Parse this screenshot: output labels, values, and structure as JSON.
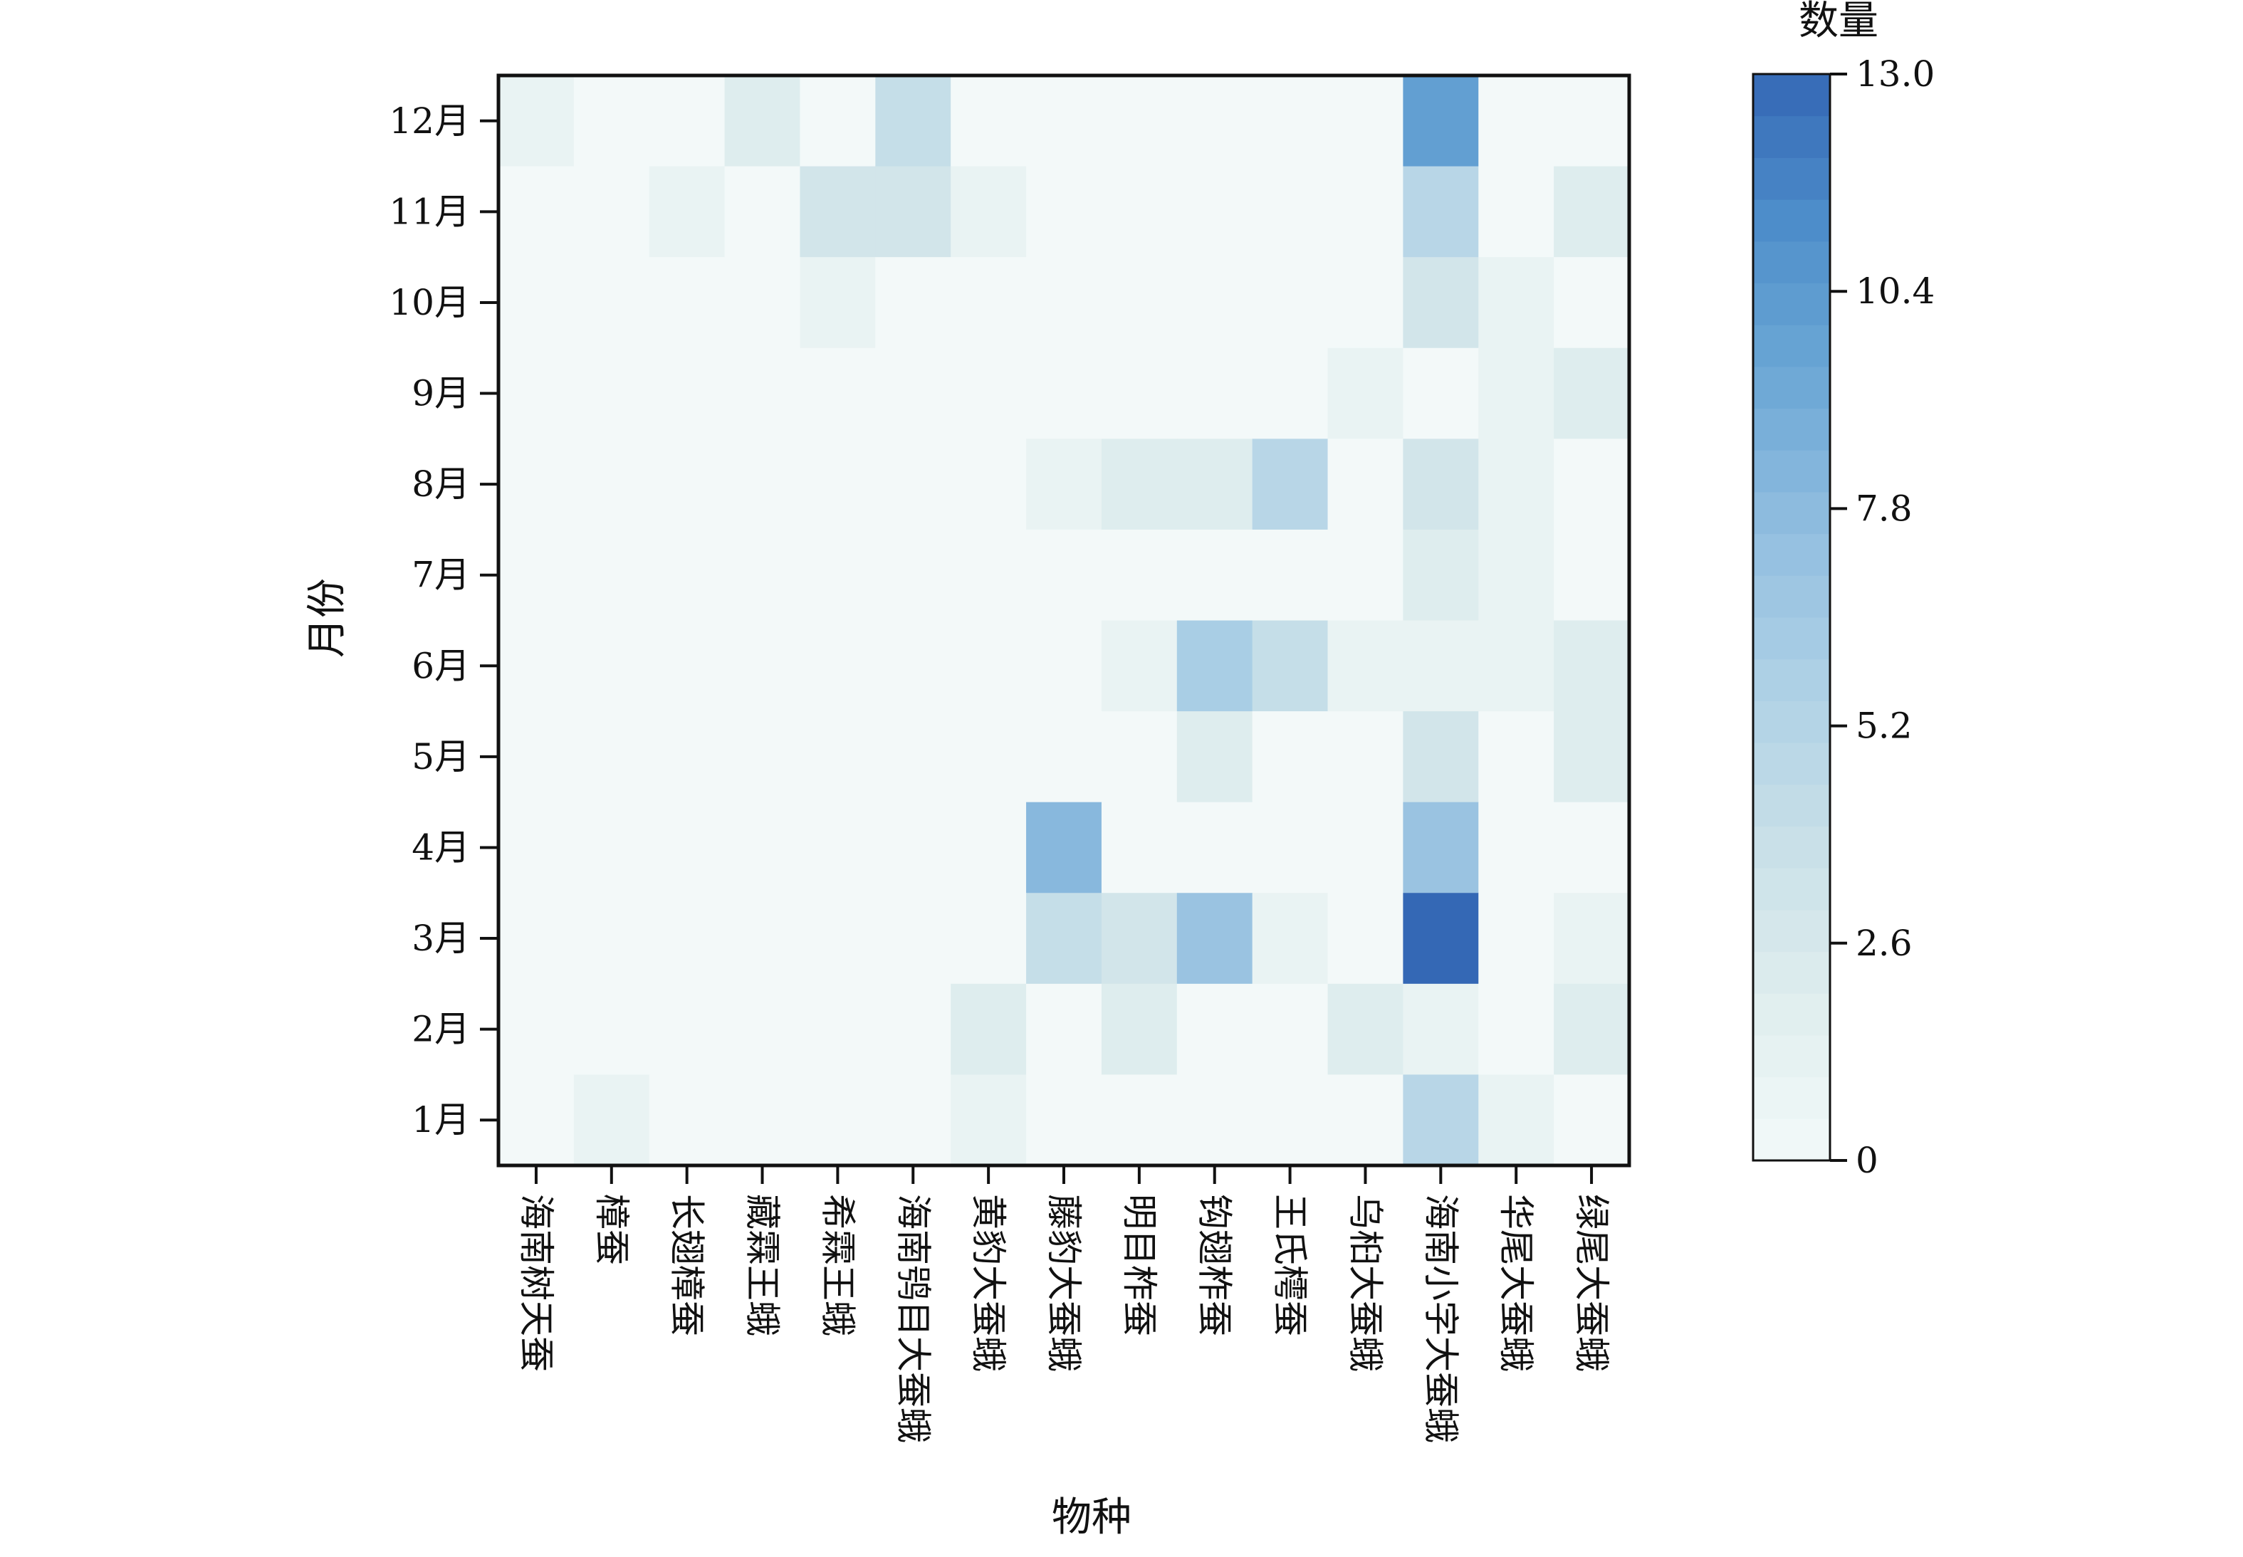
{
  "chart_data": {
    "type": "heatmap",
    "xlabel": "物种",
    "ylabel": "月份",
    "colorbar": {
      "title": "数量",
      "ticks": [
        "0",
        "2.6",
        "5.2",
        "7.8",
        "10.4",
        "13.0"
      ],
      "range": [
        0,
        13
      ],
      "colors": [
        "#f3f9f9",
        "#e0eeee",
        "#c9e0e8",
        "#b0d2e6",
        "#93bfe0",
        "#6ea9d6",
        "#4f8fcb",
        "#3468b5"
      ]
    },
    "species": [
      "海南树天蚕",
      "樟蚕",
      "长翅樟蚕",
      "藏霖王蛾",
      "希霖王蛾",
      "海南鸮目大蚕蛾",
      "黄豹大蚕蛾",
      "藤豹大蚕蛾",
      "明目柞蚕",
      "钩翅柞蚕",
      "王氏樗蚕",
      "乌桕大蚕蛾",
      "海南小字大蚕蛾",
      "华尾大蚕蛾",
      "绿尾大蚕蛾"
    ],
    "months": [
      "12月",
      "11月",
      "10月",
      "9月",
      "8月",
      "7月",
      "6月",
      "5月",
      "4月",
      "3月",
      "2月",
      "1月"
    ],
    "values": [
      [
        1,
        0,
        0,
        2,
        0,
        4,
        0,
        0,
        0,
        0,
        0,
        0,
        10,
        0,
        0
      ],
      [
        0,
        0,
        1,
        0,
        3,
        3,
        1,
        0,
        0,
        0,
        0,
        0,
        5,
        0,
        2
      ],
      [
        0,
        0,
        0,
        0,
        1,
        0,
        0,
        0,
        0,
        0,
        0,
        0,
        3,
        1,
        0
      ],
      [
        0,
        0,
        0,
        0,
        0,
        0,
        0,
        0,
        0,
        0,
        0,
        1,
        0,
        1,
        2
      ],
      [
        0,
        0,
        0,
        0,
        0,
        0,
        0,
        1,
        2,
        2,
        5,
        0,
        3,
        1,
        0
      ],
      [
        0,
        0,
        0,
        0,
        0,
        0,
        0,
        0,
        0,
        0,
        0,
        0,
        2,
        1,
        0
      ],
      [
        0,
        0,
        0,
        0,
        0,
        0,
        0,
        0,
        1,
        6,
        4,
        1,
        1,
        1,
        2
      ],
      [
        0,
        0,
        0,
        0,
        0,
        0,
        0,
        0,
        0,
        2,
        0,
        0,
        3,
        0,
        2
      ],
      [
        0,
        0,
        0,
        0,
        0,
        0,
        0,
        8,
        0,
        0,
        0,
        0,
        7,
        0,
        0
      ],
      [
        0,
        0,
        0,
        0,
        0,
        0,
        0,
        4,
        3,
        7,
        1,
        0,
        13,
        0,
        1
      ],
      [
        0,
        0,
        0,
        0,
        0,
        0,
        2,
        0,
        2,
        0,
        0,
        2,
        1,
        0,
        2
      ],
      [
        0,
        1,
        0,
        0,
        0,
        0,
        1,
        0,
        0,
        0,
        0,
        0,
        5,
        1,
        0
      ]
    ]
  }
}
